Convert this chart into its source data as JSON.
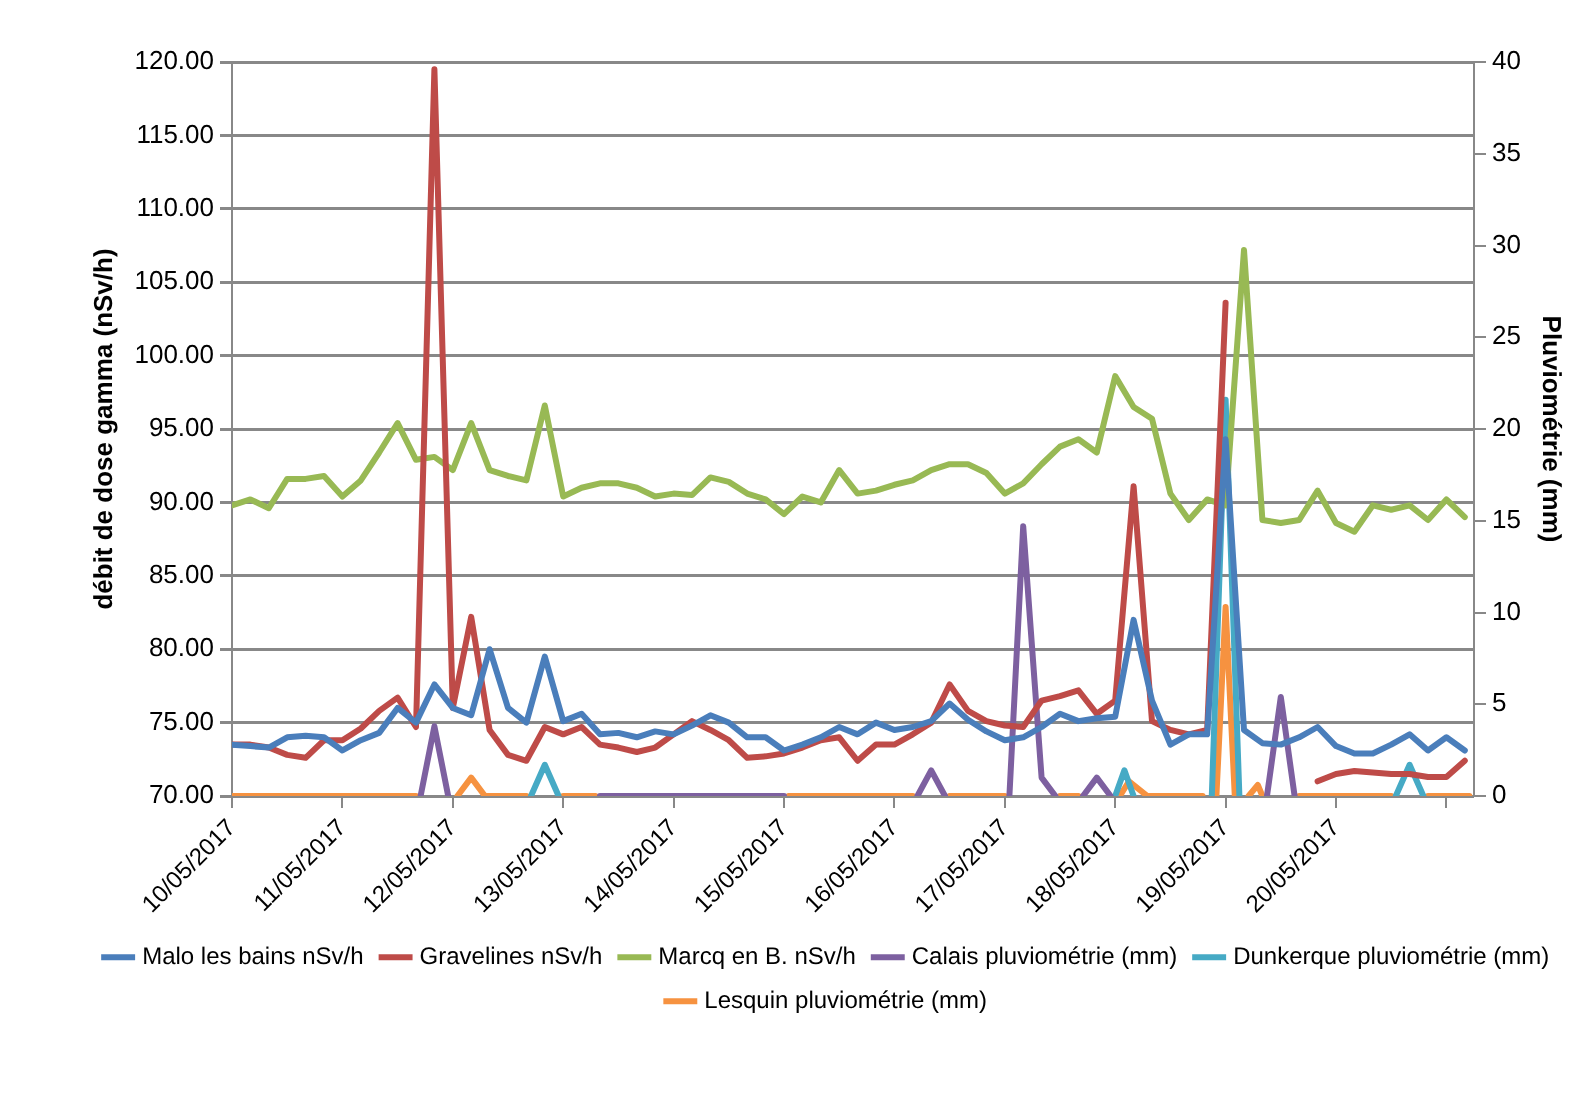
{
  "chart_data": {
    "type": "line",
    "ylabel": "débit de dose gamma (nSv/h)",
    "y2label": "Pluviométrie (mm)",
    "legend": "bottom",
    "grid": "y",
    "marker": "none",
    "line_style": "solid",
    "x": [
      "2017-05-10T00:00",
      "2017-05-10T04:00",
      "2017-05-10T08:00",
      "2017-05-10T12:00",
      "2017-05-10T16:00",
      "2017-05-10T20:00",
      "2017-05-11T00:00",
      "2017-05-11T04:00",
      "2017-05-11T08:00",
      "2017-05-11T12:00",
      "2017-05-11T16:00",
      "2017-05-11T20:00",
      "2017-05-12T00:00",
      "2017-05-12T04:00",
      "2017-05-12T08:00",
      "2017-05-12T12:00",
      "2017-05-12T16:00",
      "2017-05-12T20:00",
      "2017-05-13T00:00",
      "2017-05-13T04:00",
      "2017-05-13T08:00",
      "2017-05-13T12:00",
      "2017-05-13T16:00",
      "2017-05-13T20:00",
      "2017-05-14T00:00",
      "2017-05-14T04:00",
      "2017-05-14T08:00",
      "2017-05-14T12:00",
      "2017-05-14T16:00",
      "2017-05-14T20:00",
      "2017-05-15T00:00",
      "2017-05-15T04:00",
      "2017-05-15T08:00",
      "2017-05-15T12:00",
      "2017-05-15T16:00",
      "2017-05-15T20:00",
      "2017-05-16T00:00",
      "2017-05-16T04:00",
      "2017-05-16T08:00",
      "2017-05-16T12:00",
      "2017-05-16T16:00",
      "2017-05-16T20:00",
      "2017-05-17T00:00",
      "2017-05-17T04:00",
      "2017-05-17T08:00",
      "2017-05-17T12:00",
      "2017-05-17T16:00",
      "2017-05-17T20:00",
      "2017-05-18T00:00",
      "2017-05-18T04:00",
      "2017-05-18T08:00",
      "2017-05-18T12:00",
      "2017-05-18T16:00",
      "2017-05-18T20:00",
      "2017-05-19T00:00",
      "2017-05-19T04:00",
      "2017-05-19T08:00",
      "2017-05-19T12:00",
      "2017-05-19T16:00",
      "2017-05-19T20:00",
      "2017-05-20T00:00",
      "2017-05-20T04:00",
      "2017-05-20T08:00",
      "2017-05-20T12:00",
      "2017-05-20T16:00",
      "2017-05-20T20:00",
      "2017-05-21T00:00",
      "2017-05-21T04:00"
    ],
    "xlim": [
      "2017-05-10T00:00",
      "2017-05-21T06:00"
    ],
    "xticks": [
      {
        "value": "2017-05-10",
        "label": "10/05/2017"
      },
      {
        "value": "2017-05-11",
        "label": "11/05/2017"
      },
      {
        "value": "2017-05-12",
        "label": "12/05/2017"
      },
      {
        "value": "2017-05-13",
        "label": "13/05/2017"
      },
      {
        "value": "2017-05-14",
        "label": "14/05/2017"
      },
      {
        "value": "2017-05-15",
        "label": "15/05/2017"
      },
      {
        "value": "2017-05-16",
        "label": "16/05/2017"
      },
      {
        "value": "2017-05-17",
        "label": "17/05/2017"
      },
      {
        "value": "2017-05-18",
        "label": "18/05/2017"
      },
      {
        "value": "2017-05-19",
        "label": "19/05/2017"
      },
      {
        "value": "2017-05-20",
        "label": "20/05/2017"
      },
      {
        "value": "2017-05-21",
        "label": null
      }
    ],
    "ylim": [
      70,
      120
    ],
    "yticks": [
      {
        "value": 70,
        "label": "70.00"
      },
      {
        "value": 75,
        "label": "75.00"
      },
      {
        "value": 80,
        "label": "80.00"
      },
      {
        "value": 85,
        "label": "85.00"
      },
      {
        "value": 90,
        "label": "90.00"
      },
      {
        "value": 95,
        "label": "95.00"
      },
      {
        "value": 100,
        "label": "100.00"
      },
      {
        "value": 105,
        "label": "105.00"
      },
      {
        "value": 110,
        "label": "110.00"
      },
      {
        "value": 115,
        "label": "115.00"
      },
      {
        "value": 120,
        "label": "120.00"
      }
    ],
    "y2lim": [
      0,
      40
    ],
    "y2ticks": [
      0,
      5,
      10,
      15,
      20,
      25,
      30,
      35,
      40
    ],
    "series": [
      {
        "name": "Malo les bains nSv/h",
        "color": "#4a7ebb",
        "values": [
          73.5,
          73.4,
          73.3,
          74,
          74.1,
          74,
          73.1,
          73.8,
          74.3,
          76,
          75,
          77.6,
          76,
          75.5,
          80,
          76,
          75,
          79.5,
          75.1,
          75.6,
          74.2,
          74.3,
          74,
          74.4,
          74.2,
          74.8,
          75.5,
          75,
          74,
          74,
          73.1,
          73.5,
          74,
          74.7,
          74.2,
          75,
          74.5,
          74.7,
          75.1,
          76.3,
          75.2,
          74.4,
          73.8,
          74,
          74.7,
          75.6,
          75.1,
          75.3,
          75.4,
          82,
          76.5,
          73.5,
          74.2,
          74.2,
          94.3,
          74.5,
          73.6,
          73.5,
          74,
          74.7,
          73.4,
          72.9,
          72.9,
          73.5,
          74.2,
          73.1,
          74,
          73.1
        ]
      },
      {
        "name": "Gravelines nSv/h",
        "color": "#be4b48",
        "values": [
          73.5,
          73.5,
          73.3,
          72.8,
          72.6,
          73.8,
          73.8,
          74.6,
          75.8,
          76.7,
          74.7,
          119.5,
          76,
          82.2,
          74.5,
          72.8,
          72.4,
          74.7,
          74.2,
          74.7,
          73.5,
          73.3,
          73,
          73.3,
          74.2,
          75.1,
          74.5,
          73.8,
          72.6,
          72.7,
          72.9,
          73.3,
          73.8,
          74,
          72.4,
          73.5,
          73.5,
          74.2,
          75,
          77.6,
          75.8,
          75.1,
          74.8,
          74.7,
          76.5,
          76.8,
          77.2,
          75.6,
          76.5,
          91.1,
          75.1,
          74.5,
          74.2,
          74.5,
          103.6,
          null,
          null,
          null,
          null,
          71,
          71.5,
          71.7,
          71.6,
          71.5,
          71.5,
          71.3,
          71.3,
          72.4
        ]
      },
      {
        "name": "Marcq en B. nSv/h",
        "color": "#98b954",
        "values": [
          89.8,
          90.2,
          89.6,
          91.6,
          91.6,
          91.8,
          90.4,
          91.5,
          93.4,
          95.4,
          92.9,
          93.1,
          92.2,
          95.4,
          92.2,
          91.8,
          91.5,
          96.6,
          90.4,
          91,
          91.3,
          91.3,
          91,
          90.4,
          90.6,
          90.5,
          91.7,
          91.4,
          90.6,
          90.2,
          89.2,
          90.4,
          90,
          92.2,
          90.6,
          90.8,
          91.2,
          91.5,
          92.2,
          92.6,
          92.6,
          92,
          90.6,
          91.3,
          92.6,
          93.8,
          94.3,
          93.4,
          98.6,
          96.5,
          95.7,
          90.6,
          88.8,
          90.2,
          89.8,
          107.2,
          88.8,
          88.6,
          88.8,
          90.8,
          88.6,
          88,
          89.8,
          89.5,
          89.8,
          88.8,
          90.2,
          89
        ]
      },
      {
        "name": "Calais pluviométrie (mm)",
        "color": "#7d60a0",
        "axis": "y2",
        "x": [
          "2017-05-11T17:00",
          "2017-05-11T20:00",
          "2017-05-11T23:00",
          "2017-05-12T12:00",
          "2017-05-13T08:00",
          "2017-05-15T00:00",
          "2017-05-15T12:00",
          "2017-05-16T05:00",
          "2017-05-16T08:00",
          "2017-05-16T11:00",
          "2017-05-16T18:00",
          "2017-05-17T01:00",
          "2017-05-17T04:00",
          "2017-05-17T08:00",
          "2017-05-17T11:00",
          "2017-05-17T14:00",
          "2017-05-17T17:00",
          "2017-05-17T20:00",
          "2017-05-17T23:00",
          "2017-05-18T12:00",
          "2017-05-19T09:00",
          "2017-05-19T12:00",
          "2017-05-19T15:00"
        ],
        "values": [
          0,
          3.8,
          0,
          null,
          0,
          0,
          null,
          0,
          1.4,
          0,
          null,
          0,
          14.7,
          1,
          0,
          null,
          0,
          1,
          0,
          null,
          0,
          5.4,
          0
        ]
      },
      {
        "name": "Dunkerque pluviométrie (mm)",
        "color": "#46aac5",
        "axis": "y2",
        "x": [
          "2017-05-12T17:00",
          "2017-05-12T20:00",
          "2017-05-12T23:00",
          "2017-05-15T00:00",
          "2017-05-18T00:00",
          "2017-05-18T02:00",
          "2017-05-18T04:00",
          "2017-05-18T12:00",
          "2017-05-18T21:00",
          "2017-05-19T00:00",
          "2017-05-19T03:00",
          "2017-05-19T12:00",
          "2017-05-20T13:00",
          "2017-05-20T16:00",
          "2017-05-20T19:00"
        ],
        "values": [
          0,
          1.7,
          0,
          null,
          0,
          1.4,
          0,
          null,
          0,
          21.6,
          0,
          null,
          0,
          1.7,
          0
        ]
      },
      {
        "name": "Lesquin pluviométrie (mm)",
        "color": "#f69240",
        "axis": "y2",
        "x": [
          "2017-05-10T00:00",
          "2017-05-11T16:00",
          "2017-05-11T20:00",
          "2017-05-12T01:00",
          "2017-05-12T04:00",
          "2017-05-12T07:00",
          "2017-05-12T16:00",
          "2017-05-12T20:00",
          "2017-05-13T00:00",
          "2017-05-13T07:00",
          "2017-05-14T00:00",
          "2017-05-15T01:00",
          "2017-05-16T04:00",
          "2017-05-16T08:00",
          "2017-05-16T12:00",
          "2017-05-17T00:00",
          "2017-05-17T06:00",
          "2017-05-17T12:00",
          "2017-05-17T16:00",
          "2017-05-17T20:00",
          "2017-05-18T01:00",
          "2017-05-18T03:00",
          "2017-05-18T07:00",
          "2017-05-18T19:00",
          "2017-05-18T21:00",
          "2017-05-18T22:00",
          "2017-05-19T00:00",
          "2017-05-19T02:00",
          "2017-05-19T03:00",
          "2017-05-19T05:00",
          "2017-05-19T07:00",
          "2017-05-19T08:00",
          "2017-05-19T10:00",
          "2017-05-19T16:00",
          "2017-05-20T12:00",
          "2017-05-20T16:00",
          "2017-05-20T20:00",
          "2017-05-21T05:00"
        ],
        "values": [
          0,
          0,
          null,
          0,
          1,
          0,
          0,
          null,
          0,
          0,
          null,
          0,
          0,
          null,
          0,
          0,
          null,
          0,
          0,
          null,
          0,
          0.8,
          0,
          0,
          null,
          0,
          10.3,
          0,
          null,
          0,
          0.6,
          0,
          null,
          0,
          0,
          null,
          0,
          0
        ]
      }
    ]
  }
}
